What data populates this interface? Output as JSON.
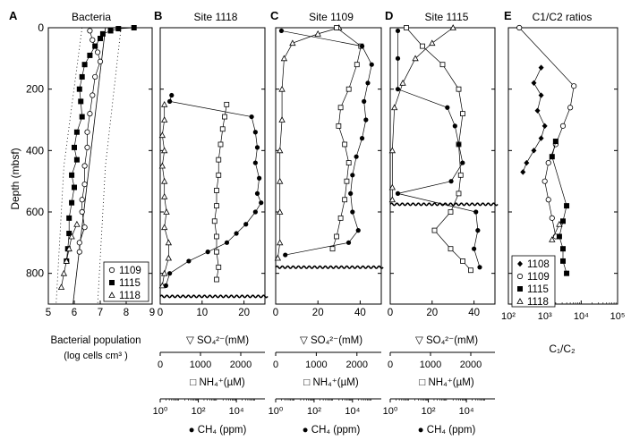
{
  "figure": {
    "depth_label": "Depth (mbsf)"
  },
  "chart_data": [
    {
      "letter": "A",
      "title": "Bacteria",
      "type": "scatter",
      "xlabel": [
        "Bacterial population",
        "(log cells cm³ )"
      ],
      "xlim": [
        5,
        9
      ],
      "xticks": [
        5,
        6,
        7,
        8,
        9
      ],
      "ylim": [
        900,
        0
      ],
      "yticks": [
        0,
        200,
        400,
        600,
        800
      ],
      "legend": {
        "position": "bottom-right",
        "entries": [
          {
            "marker": "open-circle",
            "label": "1109"
          },
          {
            "marker": "filled-square",
            "label": "1115"
          },
          {
            "marker": "open-triangle",
            "label": "1118"
          }
        ]
      },
      "series": [
        {
          "name": "1115",
          "marker": "filled-square",
          "points": [
            [
              8.3,
              0
            ],
            [
              7.7,
              3
            ],
            [
              7.4,
              10
            ],
            [
              7.1,
              20
            ],
            [
              7.0,
              35
            ],
            [
              6.8,
              60
            ],
            [
              6.6,
              90
            ],
            [
              6.4,
              120
            ],
            [
              6.3,
              160
            ],
            [
              6.2,
              200
            ],
            [
              6.25,
              240
            ],
            [
              6.3,
              290
            ],
            [
              6.1,
              340
            ],
            [
              6.0,
              390
            ],
            [
              6.1,
              430
            ],
            [
              5.9,
              480
            ],
            [
              6.0,
              520
            ],
            [
              5.9,
              570
            ],
            [
              5.8,
              620
            ],
            [
              5.8,
              670
            ],
            [
              5.75,
              720
            ],
            [
              5.7,
              760
            ]
          ]
        },
        {
          "name": "1109",
          "marker": "open-circle",
          "points": [
            [
              6.6,
              10
            ],
            [
              6.7,
              40
            ],
            [
              6.9,
              80
            ],
            [
              7.0,
              110
            ],
            [
              6.8,
              160
            ],
            [
              6.7,
              220
            ],
            [
              6.6,
              280
            ],
            [
              6.5,
              340
            ],
            [
              6.5,
              390
            ],
            [
              6.4,
              450
            ],
            [
              6.4,
              510
            ],
            [
              6.3,
              560
            ],
            [
              6.3,
              600
            ],
            [
              6.4,
              650
            ],
            [
              6.2,
              700
            ],
            [
              6.2,
              730
            ]
          ]
        },
        {
          "name": "1118",
          "marker": "open-triangle",
          "points": [
            [
              6.1,
              640
            ],
            [
              5.9,
              680
            ],
            [
              5.8,
              720
            ],
            [
              5.7,
              760
            ],
            [
              5.6,
              800
            ],
            [
              5.5,
              845
            ]
          ]
        }
      ],
      "regression_line": [
        [
          7.2,
          0
        ],
        [
          5.95,
          900
        ]
      ],
      "envelopes": [
        [
          [
            6.3,
            0
          ],
          [
            5.6,
            450
          ],
          [
            5.3,
            900
          ]
        ],
        [
          [
            7.8,
            0
          ],
          [
            7.2,
            450
          ],
          [
            6.9,
            900
          ]
        ]
      ]
    },
    {
      "letter": "B",
      "title": "Site 1118",
      "type": "scatter",
      "xlabel": "▽ SO₄²⁻(mM)",
      "xlim": [
        0,
        25
      ],
      "xticks": [
        0,
        10,
        20
      ],
      "ylim": [
        900,
        0
      ],
      "unconformity_depth": 875,
      "secondary_axes": [
        {
          "label": "□ NH₄⁺(µM)",
          "ticks": [
            "0",
            "1000",
            "2000"
          ],
          "range": [
            0,
            2600
          ]
        },
        {
          "label": "● CH₄ (ppm)",
          "ticks": [
            "10⁰",
            "10²",
            "10⁴"
          ],
          "range": [
            0,
            5.5
          ],
          "scale": "log"
        }
      ],
      "series": [
        {
          "name": "SO4",
          "marker": "open-triangle",
          "points": [
            [
              1,
              250
            ],
            [
              1,
              300
            ],
            [
              0.5,
              350
            ],
            [
              1,
              400
            ],
            [
              0.5,
              450
            ],
            [
              1,
              500
            ],
            [
              1,
              550
            ],
            [
              1.5,
              600
            ],
            [
              1,
              650
            ],
            [
              2,
              700
            ],
            [
              2,
              750
            ],
            [
              1,
              800
            ],
            [
              0.5,
              840
            ]
          ]
        },
        {
          "name": "NH4",
          "marker": "open-square",
          "points": [
            [
              1650,
              250
            ],
            [
              1600,
              290
            ],
            [
              1550,
              330
            ],
            [
              1500,
              380
            ],
            [
              1450,
              430
            ],
            [
              1450,
              480
            ],
            [
              1400,
              530
            ],
            [
              1400,
              580
            ],
            [
              1350,
              630
            ],
            [
              1400,
              680
            ],
            [
              1400,
              730
            ],
            [
              1450,
              780
            ],
            [
              1400,
              820
            ]
          ]
        },
        {
          "name": "CH4",
          "marker": "filled-circle",
          "points": [
            [
              0.6,
              220
            ],
            [
              0.5,
              240
            ],
            [
              4.8,
              290
            ],
            [
              5.0,
              340
            ],
            [
              5.1,
              390
            ],
            [
              5.0,
              440
            ],
            [
              5.2,
              490
            ],
            [
              5.1,
              540
            ],
            [
              5.3,
              570
            ],
            [
              5.0,
              600
            ],
            [
              4.5,
              640
            ],
            [
              4.0,
              670
            ],
            [
              3.5,
              700
            ],
            [
              2.5,
              730
            ],
            [
              1.5,
              760
            ],
            [
              0.5,
              800
            ],
            [
              0.3,
              840
            ]
          ]
        }
      ]
    },
    {
      "letter": "C",
      "title": "Site 1109",
      "type": "scatter",
      "xlabel": "▽ SO₄²⁻(mM)",
      "xlim": [
        0,
        50
      ],
      "xticks": [
        0,
        20,
        40
      ],
      "ylim": [
        900,
        0
      ],
      "unconformity_depth": 780,
      "secondary_axes": [
        {
          "label": "□ NH₄⁺(µM)",
          "ticks": [
            "0",
            "1000",
            "2000"
          ],
          "range": [
            0,
            2600
          ]
        },
        {
          "label": "● CH₄ (ppm)",
          "ticks": [
            "10⁰",
            "10²",
            "10⁴"
          ],
          "range": [
            0,
            5.5
          ],
          "scale": "log"
        }
      ],
      "series": [
        {
          "name": "SO4",
          "marker": "open-triangle",
          "points": [
            [
              30,
              0
            ],
            [
              20,
              20
            ],
            [
              8,
              50
            ],
            [
              4,
              100
            ],
            [
              3,
              200
            ],
            [
              3,
              300
            ],
            [
              2,
              400
            ],
            [
              2,
              500
            ],
            [
              2,
              600
            ],
            [
              2,
              700
            ],
            [
              1,
              750
            ]
          ]
        },
        {
          "name": "NH4",
          "marker": "open-square",
          "points": [
            [
              1500,
              0
            ],
            [
              2100,
              60
            ],
            [
              2000,
              120
            ],
            [
              1800,
              200
            ],
            [
              1600,
              260
            ],
            [
              1550,
              320
            ],
            [
              1700,
              380
            ],
            [
              1800,
              440
            ],
            [
              1750,
              500
            ],
            [
              1700,
              560
            ],
            [
              1600,
              620
            ],
            [
              1500,
              680
            ],
            [
              1400,
              720
            ]
          ]
        },
        {
          "name": "CH4",
          "marker": "filled-circle",
          "points": [
            [
              0.3,
              10
            ],
            [
              4.5,
              60
            ],
            [
              5.0,
              120
            ],
            [
              4.8,
              180
            ],
            [
              4.6,
              240
            ],
            [
              4.7,
              300
            ],
            [
              4.5,
              360
            ],
            [
              4.2,
              420
            ],
            [
              4.0,
              480
            ],
            [
              3.9,
              540
            ],
            [
              4.0,
              600
            ],
            [
              4.3,
              660
            ],
            [
              3.8,
              700
            ],
            [
              0.5,
              740
            ]
          ]
        }
      ]
    },
    {
      "letter": "D",
      "title": "Site 1115",
      "type": "scatter",
      "xlabel": "▽ SO₄²⁻(mM)",
      "xlim": [
        0,
        50
      ],
      "xticks": [
        0,
        20,
        40
      ],
      "ylim": [
        900,
        0
      ],
      "unconformity_depth": 575,
      "secondary_axes": [
        {
          "label": "□ NH₄⁺(µM)",
          "ticks": [
            "0",
            "1000",
            "2000"
          ],
          "range": [
            0,
            2600
          ]
        },
        {
          "label": "● CH₄ (ppm)",
          "ticks": [
            "10⁰",
            "10²",
            "10⁴"
          ],
          "range": [
            0,
            5.5
          ],
          "scale": "log"
        }
      ],
      "series": [
        {
          "name": "SO4",
          "marker": "open-triangle",
          "points": [
            [
              30,
              0
            ],
            [
              20,
              50
            ],
            [
              12,
              100
            ],
            [
              6,
              180
            ],
            [
              2,
              260
            ],
            [
              1,
              400
            ],
            [
              1,
              520
            ],
            [
              1,
              560
            ]
          ]
        },
        {
          "name": "NH4",
          "marker": "open-square",
          "points": [
            [
              400,
              0
            ],
            [
              800,
              60
            ],
            [
              1300,
              120
            ],
            [
              1700,
              200
            ],
            [
              1800,
              280
            ],
            [
              1700,
              380
            ],
            [
              1750,
              480
            ],
            [
              1700,
              540
            ],
            [
              1500,
              600
            ],
            [
              1100,
              660
            ],
            [
              1500,
              720
            ],
            [
              1800,
              760
            ],
            [
              2000,
              790
            ]
          ]
        },
        {
          "name": "CH4",
          "marker": "filled-circle",
          "points": [
            [
              0.4,
              10
            ],
            [
              0.4,
              100
            ],
            [
              0.4,
              200
            ],
            [
              3.0,
              260
            ],
            [
              3.4,
              320
            ],
            [
              3.6,
              380
            ],
            [
              3.8,
              440
            ],
            [
              3.2,
              500
            ],
            [
              0.4,
              540
            ],
            [
              4.5,
              600
            ],
            [
              4.6,
              660
            ],
            [
              4.4,
              720
            ],
            [
              4.7,
              780
            ]
          ]
        }
      ]
    },
    {
      "letter": "E",
      "title": "C1/C2 ratios",
      "type": "scatter",
      "xlabel": "C₁/C₂",
      "xlim": [
        2,
        5
      ],
      "xscale": "log",
      "xtick_labels": [
        "10²",
        "10³",
        "10⁴",
        "10⁵"
      ],
      "ylim": [
        900,
        0
      ],
      "legend": {
        "position": "bottom-left",
        "entries": [
          {
            "marker": "filled-diamond",
            "label": "1108"
          },
          {
            "marker": "open-circle",
            "label": "1109"
          },
          {
            "marker": "filled-square",
            "label": "1115"
          },
          {
            "marker": "open-triangle",
            "label": "1118"
          }
        ]
      },
      "series": [
        {
          "name": "1108",
          "marker": "filled-diamond",
          "points": [
            [
              2.9,
              130
            ],
            [
              2.7,
              180
            ],
            [
              2.9,
              220
            ],
            [
              2.8,
              270
            ],
            [
              3.0,
              320
            ],
            [
              2.9,
              360
            ],
            [
              2.7,
              400
            ],
            [
              2.5,
              440
            ],
            [
              2.4,
              470
            ]
          ]
        },
        {
          "name": "1109",
          "marker": "open-circle",
          "points": [
            [
              2.3,
              0
            ],
            [
              3.8,
              190
            ],
            [
              3.7,
              260
            ],
            [
              3.5,
              320
            ],
            [
              3.3,
              380
            ],
            [
              3.1,
              440
            ],
            [
              3.0,
              500
            ],
            [
              3.1,
              560
            ],
            [
              3.2,
              620
            ],
            [
              3.3,
              680
            ]
          ]
        },
        {
          "name": "1115",
          "marker": "filled-square",
          "points": [
            [
              3.3,
              370
            ],
            [
              3.2,
              420
            ],
            [
              3.6,
              580
            ],
            [
              3.5,
              630
            ],
            [
              3.4,
              680
            ],
            [
              3.5,
              720
            ],
            [
              3.5,
              760
            ],
            [
              3.6,
              800
            ]
          ]
        },
        {
          "name": "1118",
          "marker": "open-triangle",
          "points": [
            [
              3.4,
              640
            ],
            [
              3.2,
              690
            ]
          ]
        }
      ]
    }
  ]
}
